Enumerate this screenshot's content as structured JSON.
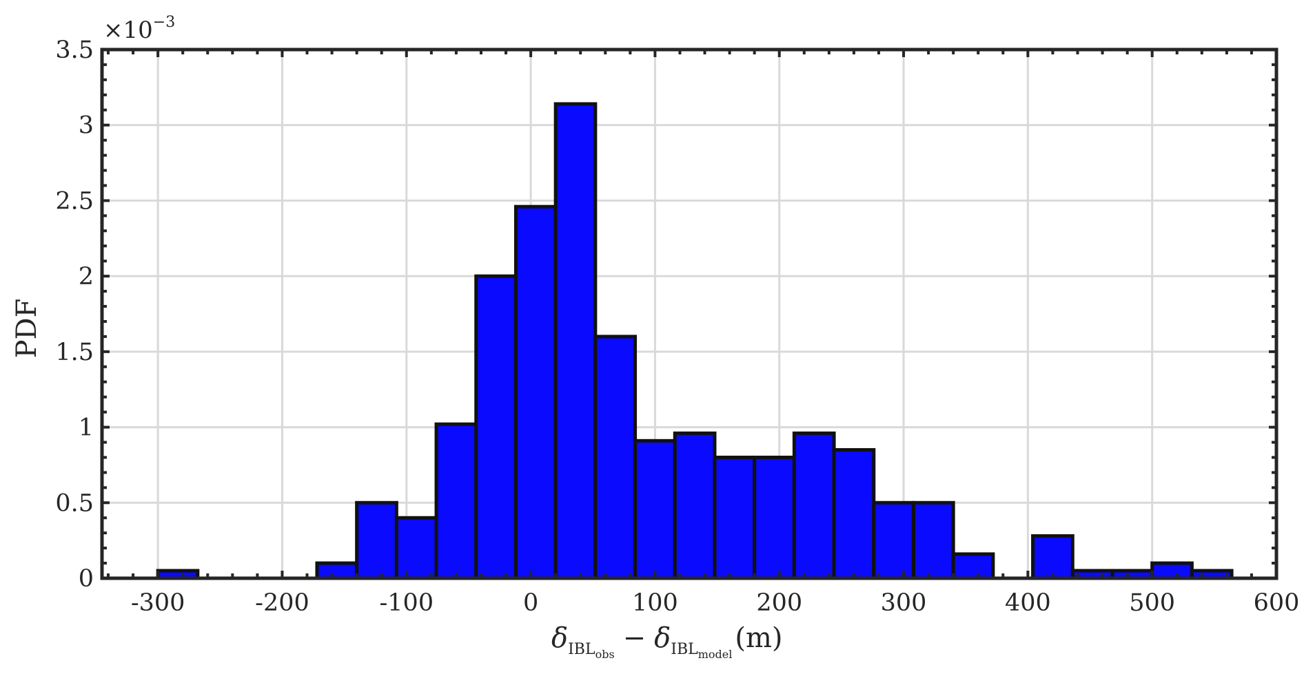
{
  "chart_data": {
    "type": "bar",
    "title": "",
    "ylabel": "PDF",
    "xlabel": {
      "delta": "δ",
      "sub1": "IBL",
      "subsub1": "obs",
      "minus": "−",
      "sub2": "IBL",
      "subsub2": "model",
      "unit": "(m)"
    },
    "y_multiplier": {
      "base": "×10",
      "exponent": "−3"
    },
    "xlim": [
      -345,
      600
    ],
    "ylim": [
      0,
      3.5
    ],
    "grid": true,
    "bar_color": "#0a0aff",
    "edge_color": "#111111",
    "grid_color": "#d9d9d9",
    "x_ticks": [
      -300,
      -200,
      -100,
      0,
      100,
      200,
      300,
      400,
      500,
      600
    ],
    "x_tick_labels": [
      "-300",
      "-200",
      "-100",
      "0",
      "100",
      "200",
      "300",
      "400",
      "500",
      "600"
    ],
    "y_ticks": [
      0,
      0.5,
      1,
      1.5,
      2,
      2.5,
      3,
      3.5
    ],
    "y_tick_labels": [
      "0",
      "0.5",
      "1",
      "1.5",
      "2",
      "2.5",
      "3",
      "3.5"
    ],
    "bin_width": 32,
    "bins": [
      {
        "left": -300,
        "value": 0.05
      },
      {
        "left": -172,
        "value": 0.1
      },
      {
        "left": -140,
        "value": 0.5
      },
      {
        "left": -108,
        "value": 0.4
      },
      {
        "left": -76,
        "value": 1.02
      },
      {
        "left": -44,
        "value": 2.0
      },
      {
        "left": -12,
        "value": 2.46
      },
      {
        "left": 20,
        "value": 3.14
      },
      {
        "left": 52,
        "value": 1.6
      },
      {
        "left": 84,
        "value": 0.91
      },
      {
        "left": 116,
        "value": 0.96
      },
      {
        "left": 148,
        "value": 0.8
      },
      {
        "left": 180,
        "value": 0.8
      },
      {
        "left": 212,
        "value": 0.96
      },
      {
        "left": 244,
        "value": 0.85
      },
      {
        "left": 276,
        "value": 0.5
      },
      {
        "left": 308,
        "value": 0.5
      },
      {
        "left": 340,
        "value": 0.16
      },
      {
        "left": 404,
        "value": 0.28
      },
      {
        "left": 436,
        "value": 0.05
      },
      {
        "left": 468,
        "value": 0.05
      },
      {
        "left": 500,
        "value": 0.1
      },
      {
        "left": 532,
        "value": 0.05
      }
    ]
  }
}
